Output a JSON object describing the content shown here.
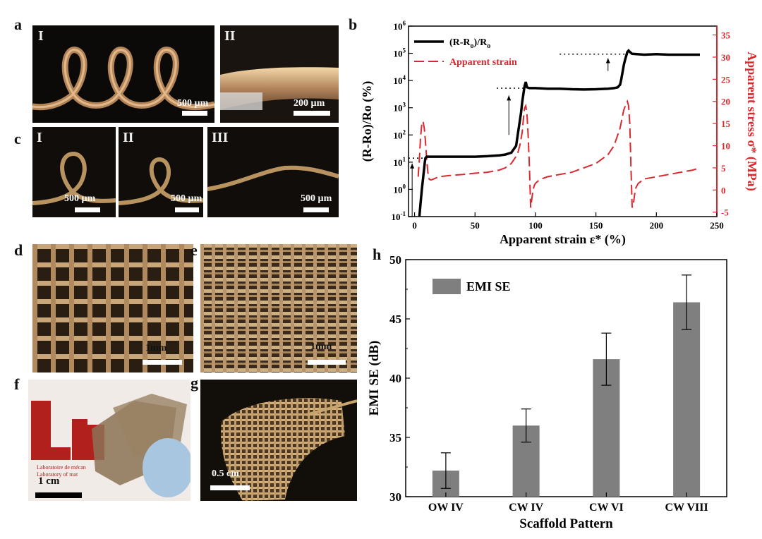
{
  "panels": {
    "a": {
      "label": "a",
      "sub1": "I",
      "sub2": "II",
      "scale1": "500 µm",
      "scale2": "200 µm"
    },
    "b": {
      "label": "b"
    },
    "c": {
      "label": "c",
      "sub1": "I",
      "sub2": "II",
      "sub3": "III",
      "scale1": "500 µm",
      "scale2": "500 µm",
      "scale3": "500 µm"
    },
    "d": {
      "label": "d",
      "scale": "1mm"
    },
    "e": {
      "label": "e",
      "scale": "1mm"
    },
    "f": {
      "label": "f",
      "scale": "1 cm",
      "logo_text": "Ln",
      "caption1": "Laboratoire de mécan",
      "caption2": "Laboratory of mat"
    },
    "g": {
      "label": "g",
      "scale": "0.5 cm"
    },
    "h": {
      "label": "h"
    }
  },
  "colors": {
    "black_series": "#000000",
    "red_series": "#d9292f",
    "bar_fill": "#7f7f7f"
  },
  "chart_data": [
    {
      "type": "line",
      "xlabel": "Apparent strain ε* (%)",
      "ylabel_left": "(R-Ro)/Ro (%)",
      "ylabel_right": "Apparent stress σ* (MPa)",
      "xlim": [
        -5,
        250
      ],
      "xticks": [
        0,
        50,
        100,
        150,
        200,
        250
      ],
      "ylim_left_log10": [
        -1,
        6
      ],
      "yticks_left": [
        "10-1",
        "100",
        "101",
        "102",
        "103",
        "104",
        "105",
        "106"
      ],
      "ylim_right": [
        -6,
        37
      ],
      "yticks_right": [
        -5,
        0,
        5,
        10,
        15,
        20,
        25,
        30,
        35
      ],
      "legend_position": "top-left",
      "series": [
        {
          "name": "(R-Ro)/Ro",
          "axis": "left",
          "style": "solid",
          "color": "#000000",
          "x": [
            4,
            5,
            6,
            7,
            8,
            8.5,
            9,
            10,
            13,
            20,
            30,
            40,
            50,
            60,
            70,
            75,
            80,
            84,
            86,
            88,
            89,
            90,
            91,
            92,
            93,
            95,
            100,
            110,
            120,
            130,
            140,
            150,
            160,
            165,
            168,
            170,
            171,
            172,
            173,
            174,
            175,
            176,
            177,
            178,
            180,
            190,
            200,
            210,
            220,
            230,
            236
          ],
          "y_log10": [
            -1,
            -0.5,
            0,
            0.4,
            0.8,
            1,
            1.15,
            1.2,
            1.2,
            1.2,
            1.2,
            1.2,
            1.2,
            1.22,
            1.25,
            1.28,
            1.35,
            1.6,
            2.2,
            2.8,
            3.2,
            3.5,
            3.8,
            3.95,
            3.75,
            3.72,
            3.72,
            3.7,
            3.7,
            3.68,
            3.67,
            3.68,
            3.7,
            3.72,
            3.75,
            3.85,
            4.05,
            4.3,
            4.55,
            4.75,
            4.9,
            5.05,
            5.1,
            5.05,
            4.98,
            4.95,
            4.97,
            4.95,
            4.95,
            4.95,
            4.95
          ]
        },
        {
          "name": "Apparent strain",
          "axis": "right",
          "style": "dashed",
          "color": "#d9292f",
          "x": [
            3,
            4,
            5,
            6,
            7,
            8,
            9,
            10,
            11,
            12,
            13,
            14,
            16,
            20,
            30,
            40,
            50,
            60,
            70,
            75,
            80,
            85,
            87,
            89,
            90,
            91,
            92,
            93,
            94,
            95,
            96,
            97,
            98,
            99,
            100,
            102,
            105,
            110,
            120,
            130,
            140,
            150,
            160,
            165,
            170,
            173,
            175,
            176,
            177,
            178,
            179,
            180,
            181,
            182,
            183,
            185,
            190,
            200,
            210,
            220,
            230,
            236
          ],
          "y": [
            3,
            7,
            12,
            15,
            15.5,
            14,
            11,
            7,
            4,
            2.5,
            2.3,
            2.3,
            2.5,
            3,
            3.3,
            3.5,
            3.8,
            4,
            4.5,
            5,
            6,
            8,
            10,
            13,
            16,
            18.5,
            19,
            17,
            12,
            5,
            -4,
            -2,
            0,
            1,
            1.5,
            2,
            2.5,
            3,
            3.5,
            4,
            5,
            6,
            8,
            10,
            14,
            18,
            19.5,
            20,
            19,
            15,
            5,
            -4,
            -3,
            -1,
            0.5,
            1.5,
            2.5,
            3,
            3.5,
            4,
            4.5,
            5
          ]
        }
      ],
      "annotations": [
        "dotted reference lines with upward arrows at each resistance step"
      ]
    },
    {
      "type": "bar",
      "xlabel": "Scaffold Pattern",
      "ylabel": "EMI SE (dB)",
      "ylim": [
        30,
        50
      ],
      "yticks": [
        30,
        35,
        40,
        45,
        50
      ],
      "legend_position": "top-left",
      "categories": [
        "OW IV",
        "CW IV",
        "CW VI",
        "CW VIII"
      ],
      "series": [
        {
          "name": "EMI SE",
          "values": [
            32.2,
            36.0,
            41.6,
            46.4
          ],
          "errors": [
            1.5,
            1.4,
            2.2,
            2.3
          ]
        }
      ]
    }
  ]
}
